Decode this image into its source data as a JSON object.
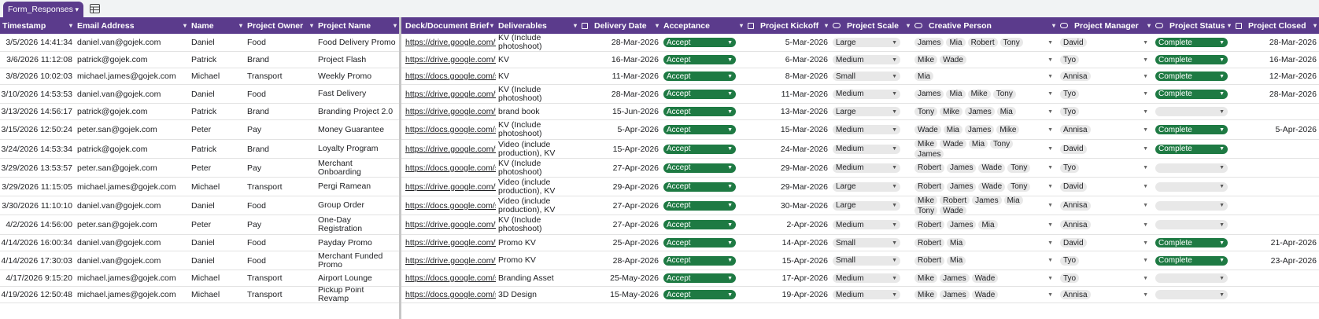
{
  "sheet_tab": {
    "name": "Form_Responses"
  },
  "columns": [
    {
      "key": "timestamp",
      "label": "Timestamp"
    },
    {
      "key": "email",
      "label": "Email Address"
    },
    {
      "key": "name",
      "label": "Name"
    },
    {
      "key": "owner",
      "label": "Project Owner"
    },
    {
      "key": "project",
      "label": "Project Name"
    },
    {
      "key": "brief",
      "label": "Deck/Document Brief"
    },
    {
      "key": "deliverables",
      "label": "Deliverables"
    },
    {
      "key": "delivery_date",
      "label": "Delivery Date"
    },
    {
      "key": "acceptance",
      "label": "Acceptance"
    },
    {
      "key": "kickoff",
      "label": "Project Kickoff"
    },
    {
      "key": "scale",
      "label": "Project Scale"
    },
    {
      "key": "creative",
      "label": "Creative Person"
    },
    {
      "key": "manager",
      "label": "Project Manager"
    },
    {
      "key": "status",
      "label": "Project Status"
    },
    {
      "key": "closed",
      "label": "Project Closed"
    }
  ],
  "rows": [
    {
      "timestamp": "3/5/2026 14:41:34",
      "email": "daniel.van@gojek.com",
      "name": "Daniel",
      "owner": "Food",
      "project": "Food Delivery Promo",
      "brief": "https://drive.google.com/fi",
      "deliverables": "KV (Include photoshoot)",
      "delivery_date": "28-Mar-2026",
      "acceptance": "Accept",
      "kickoff": "5-Mar-2026",
      "scale": "Large",
      "creative": [
        "James",
        "Mia",
        "Robert",
        "Tony"
      ],
      "manager": "David",
      "status": "Complete",
      "closed": "28-Mar-2026"
    },
    {
      "timestamp": "3/6/2026 11:12:08",
      "email": "patrick@gojek.com",
      "name": "Patrick",
      "owner": "Brand",
      "project": "Project Flash",
      "brief": "https://drive.google.com/fi",
      "deliverables": "KV",
      "delivery_date": "16-Mar-2026",
      "acceptance": "Accept",
      "kickoff": "6-Mar-2026",
      "scale": "Medium",
      "creative": [
        "Mike",
        "Wade"
      ],
      "manager": "Tyo",
      "status": "Complete",
      "closed": "16-Mar-2026"
    },
    {
      "timestamp": "3/8/2026 10:02:03",
      "email": "michael.james@gojek.com",
      "name": "Michael",
      "owner": "Transport",
      "project": "Weekly Promo",
      "brief": "https://docs.google.com/s",
      "deliverables": "KV",
      "delivery_date": "11-Mar-2026",
      "acceptance": "Accept",
      "kickoff": "8-Mar-2026",
      "scale": "Small",
      "creative": [
        "Mia"
      ],
      "manager": "Annisa",
      "status": "Complete",
      "closed": "12-Mar-2026"
    },
    {
      "timestamp": "3/10/2026 14:53:53",
      "email": "daniel.van@gojek.com",
      "name": "Daniel",
      "owner": "Food",
      "project": "Fast Delivery",
      "brief": "https://drive.google.com/fi",
      "deliverables": "KV (Include photoshoot)",
      "delivery_date": "28-Mar-2026",
      "acceptance": "Accept",
      "kickoff": "11-Mar-2026",
      "scale": "Medium",
      "creative": [
        "James",
        "Mia",
        "Mike",
        "Tony"
      ],
      "manager": "Tyo",
      "status": "Complete",
      "closed": "28-Mar-2026"
    },
    {
      "timestamp": "3/13/2026 14:56:17",
      "email": "patrick@gojek.com",
      "name": "Patrick",
      "owner": "Brand",
      "project": "Branding Project 2.0",
      "brief": "https://drive.google.com/fi",
      "deliverables": "brand book",
      "delivery_date": "15-Jun-2026",
      "acceptance": "Accept",
      "kickoff": "13-Mar-2026",
      "scale": "Large",
      "creative": [
        "Tony",
        "Mike",
        "James",
        "Mia"
      ],
      "manager": "Tyo",
      "status": "",
      "closed": ""
    },
    {
      "timestamp": "3/15/2026 12:50:24",
      "email": "peter.san@gojek.com",
      "name": "Peter",
      "owner": "Pay",
      "project": "Money Guarantee",
      "brief": "https://docs.google.com/s",
      "deliverables": "KV (Include photoshoot)",
      "delivery_date": "5-Apr-2026",
      "acceptance": "Accept",
      "kickoff": "15-Mar-2026",
      "scale": "Medium",
      "creative": [
        "Wade",
        "Mia",
        "James",
        "Mike"
      ],
      "manager": "Annisa",
      "status": "Complete",
      "closed": "5-Apr-2026"
    },
    {
      "timestamp": "3/24/2026 14:53:34",
      "email": "patrick@gojek.com",
      "name": "Patrick",
      "owner": "Brand",
      "project": "Loyalty Program",
      "brief": "https://drive.google.com/fi",
      "deliverables": "Video (include production), KV",
      "delivery_date": "15-Apr-2026",
      "acceptance": "Accept",
      "kickoff": "24-Mar-2026",
      "scale": "Medium",
      "creative": [
        "Mike",
        "Wade",
        "Mia",
        "Tony",
        "James"
      ],
      "manager": "David",
      "status": "Complete",
      "closed": ""
    },
    {
      "timestamp": "3/29/2026 13:53:57",
      "email": "peter.san@gojek.com",
      "name": "Peter",
      "owner": "Pay",
      "project": "Merchant Onboarding",
      "brief": "https://docs.google.com/s",
      "deliverables": "KV (Include photoshoot)",
      "delivery_date": "27-Apr-2026",
      "acceptance": "Accept",
      "kickoff": "29-Mar-2026",
      "scale": "Medium",
      "creative": [
        "Robert",
        "James",
        "Wade",
        "Tony"
      ],
      "manager": "Tyo",
      "status": "",
      "closed": ""
    },
    {
      "timestamp": "3/29/2026 11:15:05",
      "email": "michael.james@gojek.com",
      "name": "Michael",
      "owner": "Transport",
      "project": "Pergi Ramean",
      "brief": "https://drive.google.com/fi",
      "deliverables": "Video (include production), KV",
      "delivery_date": "29-Apr-2026",
      "acceptance": "Accept",
      "kickoff": "29-Mar-2026",
      "scale": "Large",
      "creative": [
        "Robert",
        "James",
        "Wade",
        "Tony"
      ],
      "manager": "David",
      "status": "",
      "closed": ""
    },
    {
      "timestamp": "3/30/2026 11:10:10",
      "email": "daniel.van@gojek.com",
      "name": "Daniel",
      "owner": "Food",
      "project": "Group Order",
      "brief": "https://docs.google.com/s",
      "deliverables": "Video (include production), KV",
      "delivery_date": "27-Apr-2026",
      "acceptance": "Accept",
      "kickoff": "30-Mar-2026",
      "scale": "Large",
      "creative": [
        "Mike",
        "Robert",
        "James",
        "Mia",
        "Tony",
        "Wade"
      ],
      "manager": "Annisa",
      "status": "",
      "closed": ""
    },
    {
      "timestamp": "4/2/2026 14:56:00",
      "email": "peter.san@gojek.com",
      "name": "Peter",
      "owner": "Pay",
      "project": "One-Day Registration",
      "brief": "https://drive.google.com/fi",
      "deliverables": "KV (Include photoshoot)",
      "delivery_date": "27-Apr-2026",
      "acceptance": "Accept",
      "kickoff": "2-Apr-2026",
      "scale": "Medium",
      "creative": [
        "Robert",
        "James",
        "Mia"
      ],
      "manager": "Annisa",
      "status": "",
      "closed": ""
    },
    {
      "timestamp": "4/14/2026 16:00:34",
      "email": "daniel.van@gojek.com",
      "name": "Daniel",
      "owner": "Food",
      "project": "Payday Promo",
      "brief": "https://drive.google.com/fi",
      "deliverables": "Promo KV",
      "delivery_date": "25-Apr-2026",
      "acceptance": "Accept",
      "kickoff": "14-Apr-2026",
      "scale": "Small",
      "creative": [
        "Robert",
        "Mia"
      ],
      "manager": "David",
      "status": "Complete",
      "closed": "21-Apr-2026"
    },
    {
      "timestamp": "4/14/2026 17:30:03",
      "email": "daniel.van@gojek.com",
      "name": "Daniel",
      "owner": "Food",
      "project": "Merchant Funded Promo",
      "brief": "https://drive.google.com/fi",
      "deliverables": "Promo KV",
      "delivery_date": "28-Apr-2026",
      "acceptance": "Accept",
      "kickoff": "15-Apr-2026",
      "scale": "Small",
      "creative": [
        "Robert",
        "Mia"
      ],
      "manager": "Tyo",
      "status": "Complete",
      "closed": "23-Apr-2026"
    },
    {
      "timestamp": "4/17/2026 9:15:20",
      "email": "michael.james@gojek.com",
      "name": "Michael",
      "owner": "Transport",
      "project": "Airport Lounge",
      "brief": "https://docs.google.com/s",
      "deliverables": "Branding Asset",
      "delivery_date": "25-May-2026",
      "acceptance": "Accept",
      "kickoff": "17-Apr-2026",
      "scale": "Medium",
      "creative": [
        "Mike",
        "James",
        "Wade"
      ],
      "manager": "Tyo",
      "status": "",
      "closed": ""
    },
    {
      "timestamp": "4/19/2026 12:50:48",
      "email": "michael.james@gojek.com",
      "name": "Michael",
      "owner": "Transport",
      "project": "Pickup Point Revamp",
      "brief": "https://docs.google.com/s",
      "deliverables": "3D Design",
      "delivery_date": "15-May-2026",
      "acceptance": "Accept",
      "kickoff": "19-Apr-2026",
      "scale": "Medium",
      "creative": [
        "Mike",
        "James",
        "Wade"
      ],
      "manager": "Annisa",
      "status": "",
      "closed": ""
    }
  ]
}
